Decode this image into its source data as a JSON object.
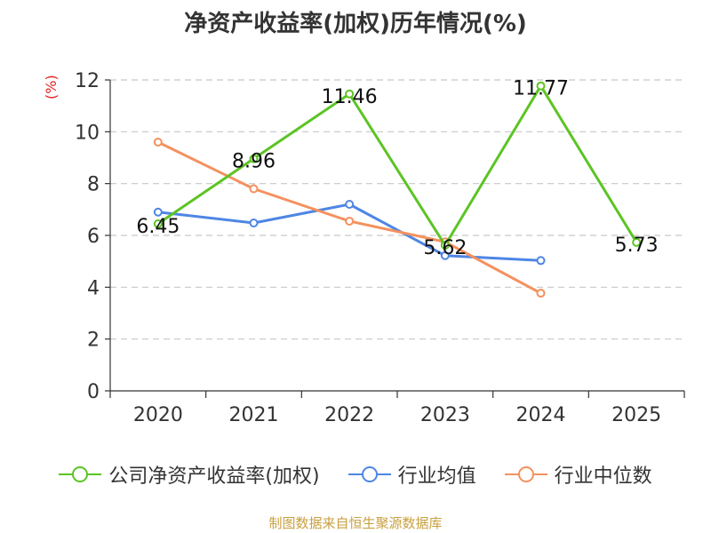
{
  "chart_data": {
    "type": "line",
    "title": "净资产收益率(加权)历年情况(%)",
    "unit_label": "(%)",
    "categories": [
      "2020",
      "2021",
      "2022",
      "2023",
      "2024",
      "2025"
    ],
    "ylim": [
      0,
      12
    ],
    "yticks": [
      "0",
      "2",
      "4",
      "6",
      "8",
      "10",
      "12"
    ],
    "grid": true,
    "legend_position": "bottom",
    "series": [
      {
        "name": "公司净资产收益率(加权)",
        "color": "#5cc424",
        "values": [
          6.45,
          8.96,
          11.46,
          5.62,
          11.77,
          5.73
        ],
        "labels": [
          "6.45",
          "8.96",
          "11.46",
          "5.62",
          "11.77",
          "5.73"
        ]
      },
      {
        "name": "行业均值",
        "color": "#4e86e4",
        "values": [
          6.9,
          6.48,
          7.2,
          5.22,
          5.03,
          null
        ]
      },
      {
        "name": "行业中位数",
        "color": "#f4915e",
        "values": [
          9.6,
          7.8,
          6.55,
          5.75,
          3.77,
          null
        ]
      }
    ]
  },
  "source": "制图数据来自恒生聚源数据库"
}
